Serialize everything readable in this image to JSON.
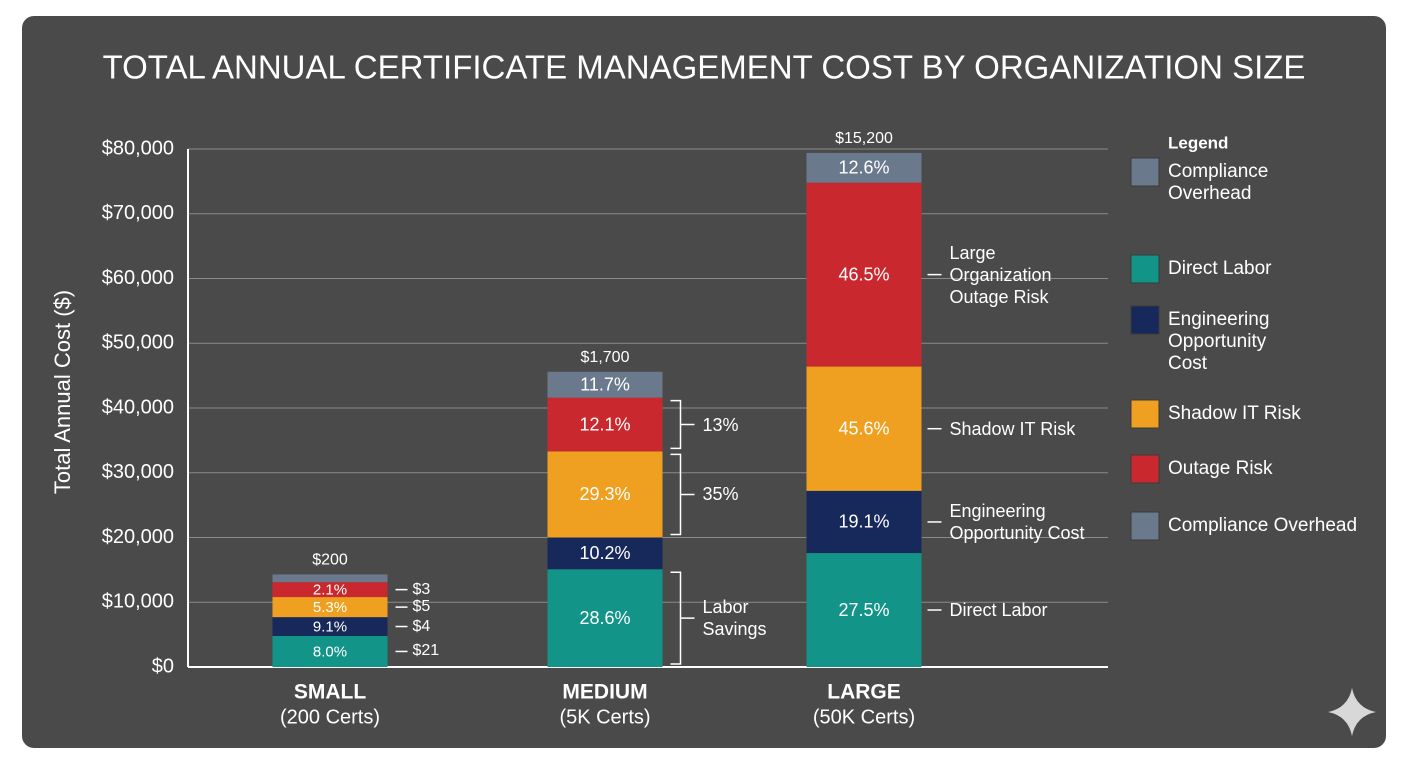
{
  "chart_data": {
    "type": "stacked_bar",
    "title": "TOTAL ANNUAL CERTIFICATE MANAGEMENT COST BY ORGANIZATION SIZE",
    "y_label": "Total Annual Cost ($)",
    "categories": [
      "SMALL",
      "MEDIUM",
      "LARGE"
    ],
    "category_sublabels": [
      "(200 Certs)",
      "(5K Certs)",
      "(50K Certs)"
    ],
    "ylim": [
      0,
      80000
    ],
    "yticks": [
      {
        "value": 0,
        "label": "$0"
      },
      {
        "value": 10000,
        "label": "$10,000"
      },
      {
        "value": 20000,
        "label": "$20,000"
      },
      {
        "value": 30000,
        "label": "$30,000"
      },
      {
        "value": 40000,
        "label": "$40,000"
      },
      {
        "value": 50000,
        "label": "$50,000"
      },
      {
        "value": 60000,
        "label": "$60,000"
      },
      {
        "value": 70000,
        "label": "$70,000"
      },
      {
        "value": 80000,
        "label": "$80,000"
      }
    ],
    "grid": true,
    "series": [
      {
        "name": "Direct Labor",
        "color": "#139488",
        "values": [
          4800,
          15100,
          17600
        ],
        "segment_labels": [
          "8.0%",
          "28.6%",
          "27.5%"
        ]
      },
      {
        "name": "Engineering Opportunity Cost",
        "color": "#17285a",
        "values": [
          2900,
          4900,
          9600
        ],
        "segment_labels": [
          "9.1%",
          "10.2%",
          "19.1%"
        ]
      },
      {
        "name": "Shadow IT Risk",
        "color": "#f0a020",
        "values": [
          3100,
          13300,
          19200
        ],
        "segment_labels": [
          "5.3%",
          "29.3%",
          "45.6%"
        ]
      },
      {
        "name": "Outage Risk",
        "color": "#c9282e",
        "values": [
          2300,
          8300,
          28400
        ],
        "segment_labels": [
          "2.1%",
          "12.1%",
          "46.5%"
        ]
      },
      {
        "name": "Compliance Overhead",
        "color": "#6a7a8c",
        "values": [
          1200,
          4000,
          4600
        ],
        "segment_labels": [
          "",
          "11.7%",
          "12.6%"
        ]
      }
    ],
    "top_labels": [
      "$200",
      "$1,700",
      "$15,200"
    ],
    "segment_notes": [
      [
        "$21",
        "$4",
        "$5",
        "$3",
        null
      ],
      [
        "Labor Savings",
        null,
        "35%",
        "13%",
        null
      ],
      [
        "Direct Labor",
        "Engineering Opportunity Cost",
        "Shadow IT Risk",
        "Large Organization Outage Risk",
        null
      ]
    ],
    "legend": {
      "title": "Legend",
      "position": "right",
      "extra_entry": {
        "name": "Compliance Overhead",
        "color": "#6a7a8c"
      }
    }
  }
}
